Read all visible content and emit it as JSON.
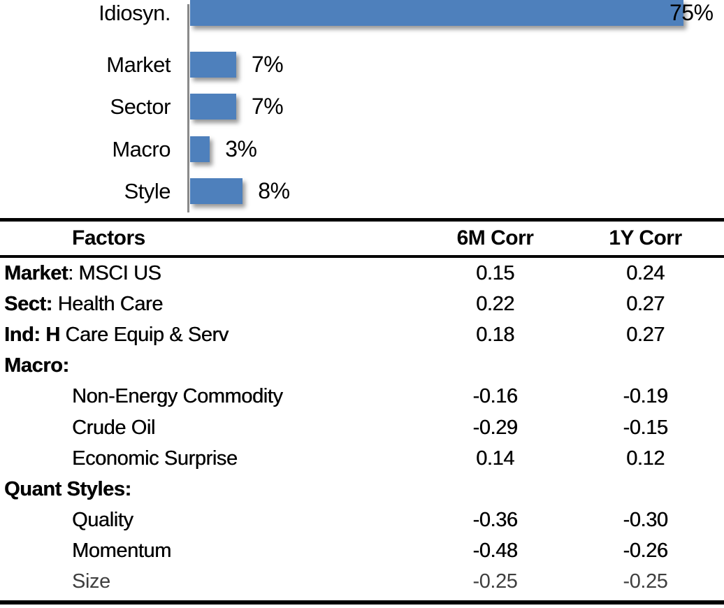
{
  "chart_data": [
    {
      "type": "bar",
      "orientation": "horizontal",
      "title": "",
      "categories": [
        "Market",
        "Sector",
        "Macro",
        "Style",
        "Idiosyn."
      ],
      "values": [
        7,
        7,
        3,
        8,
        75
      ],
      "data_labels": [
        "7%",
        "7%",
        "3%",
        "8%",
        "75%"
      ],
      "unit": "percent",
      "xlim": [
        0,
        75
      ],
      "grid": false,
      "legend": false,
      "bar_color": "#4e80bc",
      "axis_color": "#8a8a8a"
    },
    {
      "type": "table",
      "columns": [
        "Factors",
        "6M Corr",
        "1Y Corr"
      ],
      "rows": [
        {
          "factor_bold": "Market",
          "factor_rest": ": MSCI US",
          "indent": false,
          "corr_6m": "0.15",
          "corr_1y": "0.24"
        },
        {
          "factor_bold": "Sect:",
          "factor_rest": " Health Care",
          "indent": false,
          "corr_6m": "0.22",
          "corr_1y": "0.27"
        },
        {
          "factor_bold": "Ind: H",
          "factor_rest": " Care Equip & Serv",
          "indent": false,
          "corr_6m": "0.18",
          "corr_1y": "0.27"
        },
        {
          "factor_bold": "Macro:",
          "factor_rest": "",
          "indent": false,
          "corr_6m": "",
          "corr_1y": ""
        },
        {
          "factor_bold": "",
          "factor_rest": "Non-Energy Commodity",
          "indent": true,
          "corr_6m": "-0.16",
          "corr_1y": "-0.19"
        },
        {
          "factor_bold": "",
          "factor_rest": "Crude Oil",
          "indent": true,
          "corr_6m": "-0.29",
          "corr_1y": "-0.15"
        },
        {
          "factor_bold": "",
          "factor_rest": "Economic Surprise",
          "indent": true,
          "corr_6m": "0.14",
          "corr_1y": "0.12"
        },
        {
          "factor_bold": "Quant Styles:",
          "factor_rest": "",
          "indent": false,
          "corr_6m": "",
          "corr_1y": ""
        },
        {
          "factor_bold": "",
          "factor_rest": "Quality",
          "indent": true,
          "corr_6m": "-0.36",
          "corr_1y": "-0.30"
        },
        {
          "factor_bold": "",
          "factor_rest": "Momentum",
          "indent": true,
          "corr_6m": "-0.48",
          "corr_1y": "-0.26"
        },
        {
          "factor_bold": "",
          "factor_rest": "Size",
          "indent": true,
          "muted": true,
          "corr_6m": "-0.25",
          "corr_1y": "-0.25"
        }
      ]
    }
  ]
}
